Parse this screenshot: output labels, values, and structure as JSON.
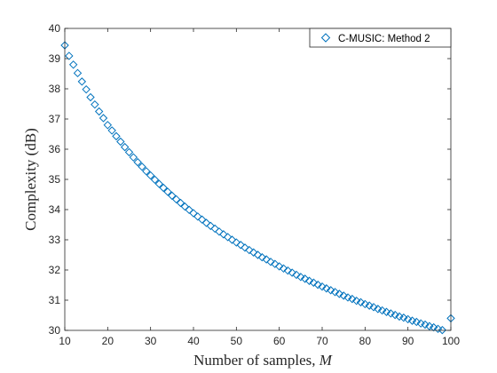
{
  "colors": {
    "marker": "#0072BD",
    "axis": "#262626",
    "background": "#ffffff"
  },
  "chart_data": {
    "type": "scatter",
    "marker": "diamond",
    "xlabel": "Number of samples",
    "xlabel_var": "M",
    "ylabel": "Complexity (dB)",
    "xlim": [
      10,
      100
    ],
    "ylim": [
      30,
      40
    ],
    "xticks": [
      "10",
      "20",
      "30",
      "40",
      "50",
      "60",
      "70",
      "80",
      "90",
      "100"
    ],
    "yticks": [
      "30",
      "31",
      "32",
      "33",
      "34",
      "35",
      "36",
      "37",
      "38",
      "39",
      "40"
    ],
    "grid": false,
    "legend_position": "top-right",
    "series": [
      {
        "name": "C-MUSIC: Method 2",
        "x": [
          10,
          11,
          12,
          13,
          14,
          15,
          16,
          17,
          18,
          19,
          20,
          21,
          22,
          23,
          24,
          25,
          26,
          27,
          28,
          29,
          30,
          31,
          32,
          33,
          34,
          35,
          36,
          37,
          38,
          39,
          40,
          41,
          42,
          43,
          44,
          45,
          46,
          47,
          48,
          49,
          50,
          51,
          52,
          53,
          54,
          55,
          56,
          57,
          58,
          59,
          60,
          61,
          62,
          63,
          64,
          65,
          66,
          67,
          68,
          69,
          70,
          71,
          72,
          73,
          74,
          75,
          76,
          77,
          78,
          79,
          80,
          81,
          82,
          83,
          84,
          85,
          86,
          87,
          88,
          89,
          90,
          91,
          92,
          93,
          94,
          95,
          96,
          97,
          98,
          99,
          100
        ],
        "y": [
          39.44,
          39.09,
          38.8,
          38.52,
          38.24,
          37.98,
          37.72,
          37.48,
          37.25,
          37.03,
          36.8,
          36.62,
          36.43,
          36.25,
          36.07,
          35.9,
          35.73,
          35.57,
          35.42,
          35.27,
          35.13,
          34.99,
          34.85,
          34.72,
          34.59,
          34.46,
          34.34,
          34.22,
          34.1,
          33.99,
          33.88,
          33.77,
          33.67,
          33.56,
          33.46,
          33.37,
          33.27,
          33.18,
          33.09,
          33.0,
          32.91,
          32.83,
          32.74,
          32.66,
          32.58,
          32.5,
          32.42,
          32.35,
          32.27,
          32.2,
          32.12,
          32.05,
          31.98,
          31.91,
          31.84,
          31.77,
          31.71,
          31.64,
          31.58,
          31.51,
          31.45,
          31.39,
          31.33,
          31.27,
          31.21,
          31.15,
          31.09,
          31.04,
          30.98,
          30.93,
          30.87,
          30.82,
          30.77,
          30.71,
          30.66,
          30.61,
          30.56,
          30.51,
          30.46,
          30.42,
          30.37,
          30.32,
          30.28,
          30.23,
          30.19,
          30.14,
          30.1,
          30.05,
          30.01,
          29.97,
          30.4
        ]
      }
    ]
  }
}
